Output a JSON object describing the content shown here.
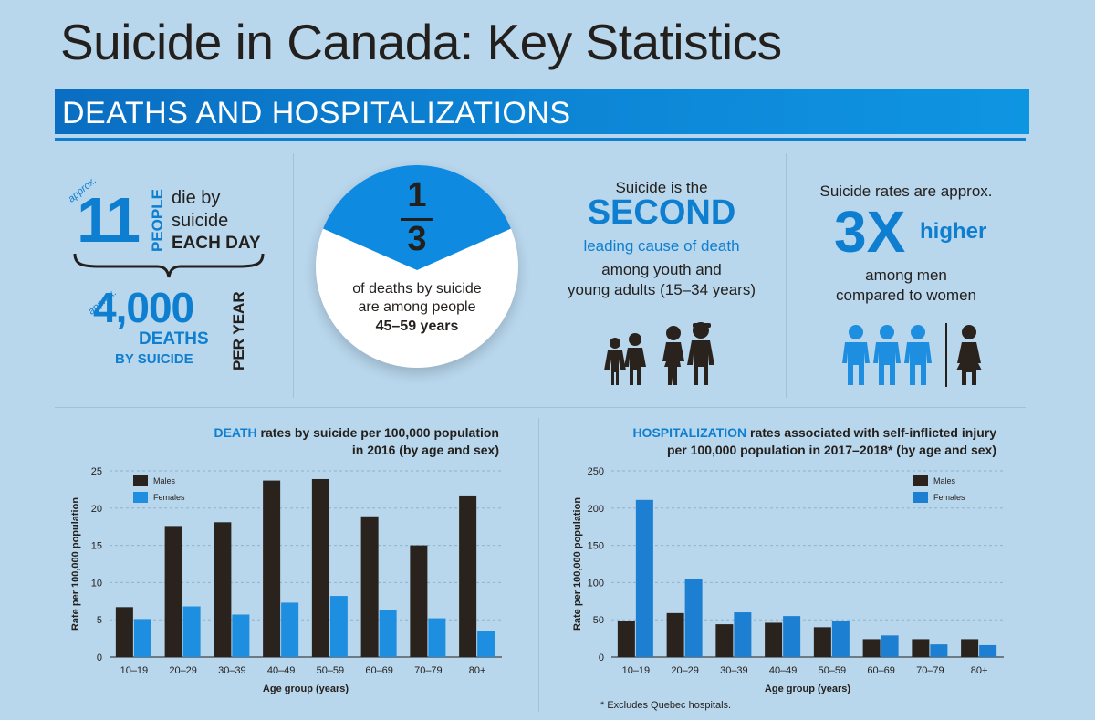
{
  "title": "Suicide in Canada: Key Statistics",
  "banner": "DEATHS AND HOSPITALIZATIONS",
  "colors": {
    "accent": "#0e7fd0",
    "dark": "#231f1c",
    "background": "#b8d6ec"
  },
  "panel1": {
    "approx1": "approx.",
    "number1": "11",
    "people": "PEOPLE",
    "line_die_by": "die by",
    "line_suicide": "suicide",
    "each_day": "EACH DAY",
    "approx2": "approx.",
    "number2": "4,000",
    "deaths": "DEATHS",
    "by_suicide": "BY SUICIDE",
    "per_year": "PER YEAR"
  },
  "panel2": {
    "numerator": "1",
    "denominator": "3",
    "line1": "of deaths by suicide",
    "line2": "are among people",
    "line3": "45–59 years"
  },
  "panel3": {
    "line1": "Suicide is the",
    "big": "SECOND",
    "line2": "leading cause of death",
    "line3": "among youth and",
    "line4": "young adults (15–34 years)"
  },
  "panel4": {
    "line1": "Suicide rates are approx.",
    "big": "3X",
    "higher": "higher",
    "line2": "among men",
    "line3": "compared to women"
  },
  "chart_data": [
    {
      "type": "bar",
      "title_highlight": "DEATH",
      "title_rest": " rates by suicide per 100,000 population",
      "title_line2": "in 2016 (by age and sex)",
      "xlabel": "Age group (years)",
      "ylabel": "Rate per 100,000 population",
      "ylim": [
        0,
        25
      ],
      "yticks": [
        0,
        5,
        10,
        15,
        20,
        25
      ],
      "categories": [
        "10–19",
        "20–29",
        "30–39",
        "40–49",
        "50–59",
        "60–69",
        "70–79",
        "80+"
      ],
      "series": [
        {
          "name": "Males",
          "color": "#2a221d",
          "values": [
            6.7,
            17.6,
            18.1,
            23.7,
            23.9,
            18.9,
            15.0,
            21.7
          ]
        },
        {
          "name": "Females",
          "color": "#1d8ee0",
          "values": [
            5.1,
            6.8,
            5.7,
            7.3,
            8.2,
            6.3,
            5.2,
            3.5
          ]
        }
      ]
    },
    {
      "type": "bar",
      "title_highlight": "HOSPITALIZATION",
      "title_rest": " rates associated with self-inflicted injury",
      "title_line2": "per 100,000 population in 2017–2018* (by age and sex)",
      "xlabel": "Age group (years)",
      "ylabel": "Rate per 100,000 population",
      "ylim": [
        0,
        250
      ],
      "yticks": [
        0,
        50,
        100,
        150,
        200,
        250
      ],
      "categories": [
        "10–19",
        "20–29",
        "30–39",
        "40–49",
        "50–59",
        "60–69",
        "70–79",
        "80+"
      ],
      "series": [
        {
          "name": "Males",
          "color": "#2a221d",
          "values": [
            49,
            59,
            44,
            46,
            40,
            24,
            24,
            24
          ]
        },
        {
          "name": "Females",
          "color": "#1d7fd2",
          "values": [
            211,
            105,
            60,
            55,
            48,
            29,
            17,
            16
          ]
        }
      ],
      "footnote": "* Excludes Quebec hospitals."
    }
  ]
}
